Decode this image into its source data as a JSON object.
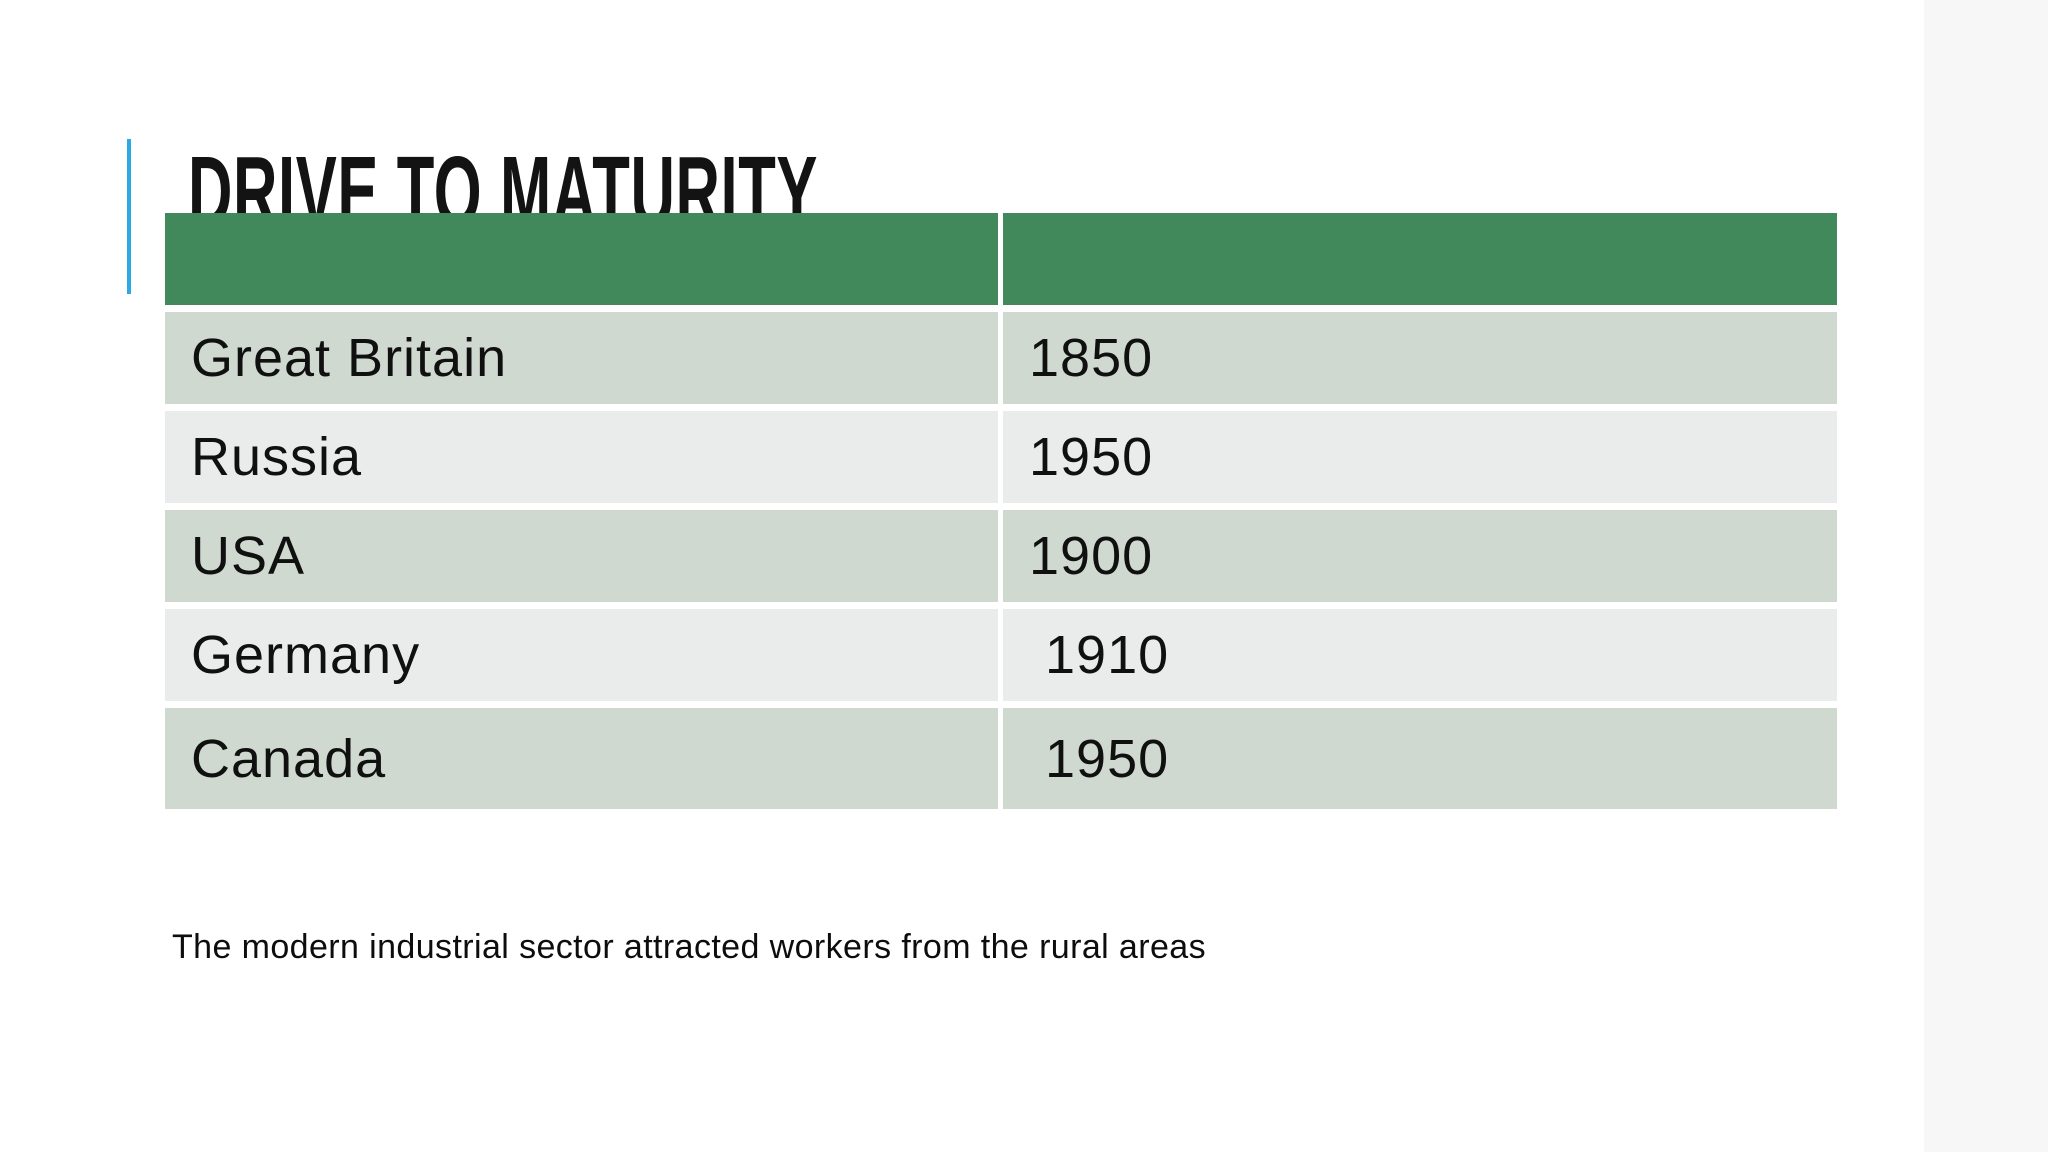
{
  "slide": {
    "title": "DRIVE TO MATURITY",
    "caption": "The modern industrial sector attracted workers from the rural areas",
    "colors": {
      "accent": "#2BA9E0",
      "header_green": "#41895A",
      "row_dark": "#CFD9D0",
      "row_light": "#E9ECEA"
    },
    "table": {
      "header": {
        "col1": "",
        "col2": ""
      },
      "rows": [
        {
          "country": "Great Britain",
          "year": "1850"
        },
        {
          "country": "Russia",
          "year": "1950"
        },
        {
          "country": "USA",
          "year": "1900"
        },
        {
          "country": "Germany",
          "year": " 1910"
        },
        {
          "country": "Canada",
          "year": " 1950"
        }
      ]
    }
  }
}
